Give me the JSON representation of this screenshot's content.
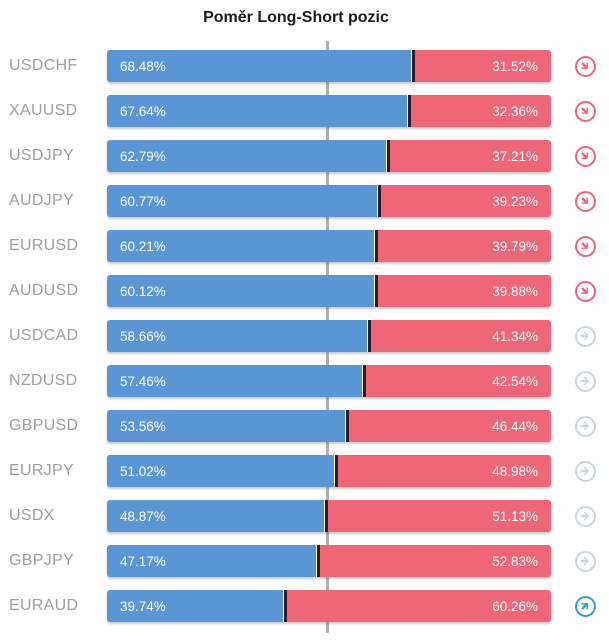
{
  "title": "Poměr Long-Short pozic",
  "colors": {
    "long": "#5a96d6",
    "short": "#ee6678",
    "divider": "#2b1c26",
    "centerline": "#aeaeae",
    "label": "#9e9e9e",
    "title": "#1c1c1c",
    "icon_red": "#f2637a",
    "icon_neutral": "#c9d6e2",
    "icon_blue": "#2e9ce5"
  },
  "chart_data": {
    "type": "bar",
    "orientation": "horizontal",
    "stacked": true,
    "title": "Poměr Long-Short pozic",
    "categories": [
      "USDCHF",
      "XAUUSD",
      "USDJPY",
      "AUDJPY",
      "EURUSD",
      "AUDUSD",
      "USDCAD",
      "NZDUSD",
      "GBPUSD",
      "EURJPY",
      "USDX",
      "GBPJPY",
      "EURAUD"
    ],
    "series": [
      {
        "name": "Long",
        "color": "#5a96d6",
        "values": [
          68.48,
          67.64,
          62.79,
          60.77,
          60.21,
          60.12,
          58.66,
          57.46,
          53.56,
          51.02,
          48.87,
          47.17,
          39.74
        ]
      },
      {
        "name": "Short",
        "color": "#ee6678",
        "values": [
          31.52,
          32.36,
          37.21,
          39.23,
          39.79,
          39.88,
          41.34,
          42.54,
          46.44,
          48.98,
          51.13,
          52.83,
          60.26
        ]
      }
    ],
    "xlim": [
      0,
      100
    ],
    "gridline_x": 50,
    "grid": "center-line-only",
    "legend_position": "none",
    "value_label_format": "0.00%"
  },
  "rows": [
    {
      "symbol": "USDCHF",
      "long": 68.48,
      "short": 31.52,
      "long_label": "68.48%",
      "short_label": "31.52%",
      "trend": "down-right",
      "trend_color": "red"
    },
    {
      "symbol": "XAUUSD",
      "long": 67.64,
      "short": 32.36,
      "long_label": "67.64%",
      "short_label": "32.36%",
      "trend": "down-right",
      "trend_color": "red"
    },
    {
      "symbol": "USDJPY",
      "long": 62.79,
      "short": 37.21,
      "long_label": "62.79%",
      "short_label": "37.21%",
      "trend": "down-right",
      "trend_color": "red"
    },
    {
      "symbol": "AUDJPY",
      "long": 60.77,
      "short": 39.23,
      "long_label": "60.77%",
      "short_label": "39.23%",
      "trend": "down-right",
      "trend_color": "red"
    },
    {
      "symbol": "EURUSD",
      "long": 60.21,
      "short": 39.79,
      "long_label": "60.21%",
      "short_label": "39.79%",
      "trend": "down-right",
      "trend_color": "red"
    },
    {
      "symbol": "AUDUSD",
      "long": 60.12,
      "short": 39.88,
      "long_label": "60.12%",
      "short_label": "39.88%",
      "trend": "down-right",
      "trend_color": "red"
    },
    {
      "symbol": "USDCAD",
      "long": 58.66,
      "short": 41.34,
      "long_label": "58.66%",
      "short_label": "41.34%",
      "trend": "right",
      "trend_color": "neutral"
    },
    {
      "symbol": "NZDUSD",
      "long": 57.46,
      "short": 42.54,
      "long_label": "57.46%",
      "short_label": "42.54%",
      "trend": "right",
      "trend_color": "neutral"
    },
    {
      "symbol": "GBPUSD",
      "long": 53.56,
      "short": 46.44,
      "long_label": "53.56%",
      "short_label": "46.44%",
      "trend": "right",
      "trend_color": "neutral"
    },
    {
      "symbol": "EURJPY",
      "long": 51.02,
      "short": 48.98,
      "long_label": "51.02%",
      "short_label": "48.98%",
      "trend": "right",
      "trend_color": "neutral"
    },
    {
      "symbol": "USDX",
      "long": 48.87,
      "short": 51.13,
      "long_label": "48.87%",
      "short_label": "51.13%",
      "trend": "right",
      "trend_color": "neutral"
    },
    {
      "symbol": "GBPJPY",
      "long": 47.17,
      "short": 52.83,
      "long_label": "47.17%",
      "short_label": "52.83%",
      "trend": "right",
      "trend_color": "neutral"
    },
    {
      "symbol": "EURAUD",
      "long": 39.74,
      "short": 60.26,
      "long_label": "39.74%",
      "short_label": "60.26%",
      "trend": "up-right",
      "trend_color": "blue"
    }
  ]
}
